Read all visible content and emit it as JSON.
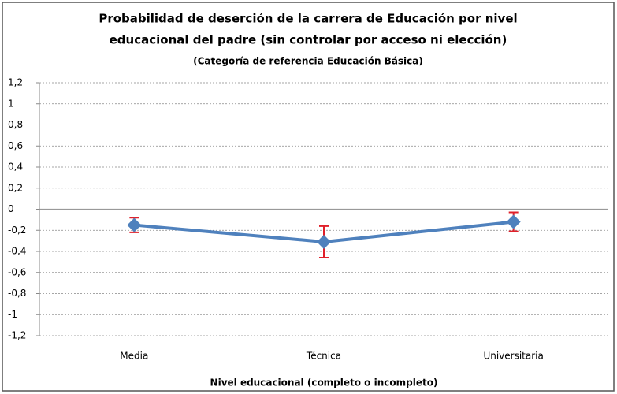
{
  "chart_data": {
    "type": "line",
    "title": [
      "Probabilidad de deserción de la carrera de Educación por nivel",
      "educacional del padre (sin controlar por acceso ni elección)"
    ],
    "subtitle": "(Categoría de referencia Educación Básica)",
    "x_label": "Nivel educacional (completo o incompleto)",
    "categories": [
      "Media",
      "Técnica",
      "Universitaria"
    ],
    "values": [
      -0.15,
      -0.31,
      -0.12
    ],
    "errors": [
      0.07,
      0.15,
      0.09
    ],
    "color": "#4f81bd",
    "error_color": "#e0202a",
    "ylim": [
      -1.2,
      1.2
    ],
    "yticks": [
      {
        "value": -1.2,
        "label": "-1,2"
      },
      -1,
      {
        "value": -0.8,
        "label": "-0,8"
      },
      {
        "value": -0.6,
        "label": "-0,6"
      },
      {
        "value": -0.4,
        "label": "-0,4"
      },
      {
        "value": -0.2,
        "label": "-0,2"
      },
      0,
      {
        "value": 0.2,
        "label": "0,2"
      },
      {
        "value": 0.4,
        "label": "0,4"
      },
      {
        "value": 0.6,
        "label": "0,6"
      },
      {
        "value": 0.8,
        "label": "0,8"
      },
      1,
      {
        "value": 1.2,
        "label": "1,2"
      }
    ],
    "grid": true
  }
}
